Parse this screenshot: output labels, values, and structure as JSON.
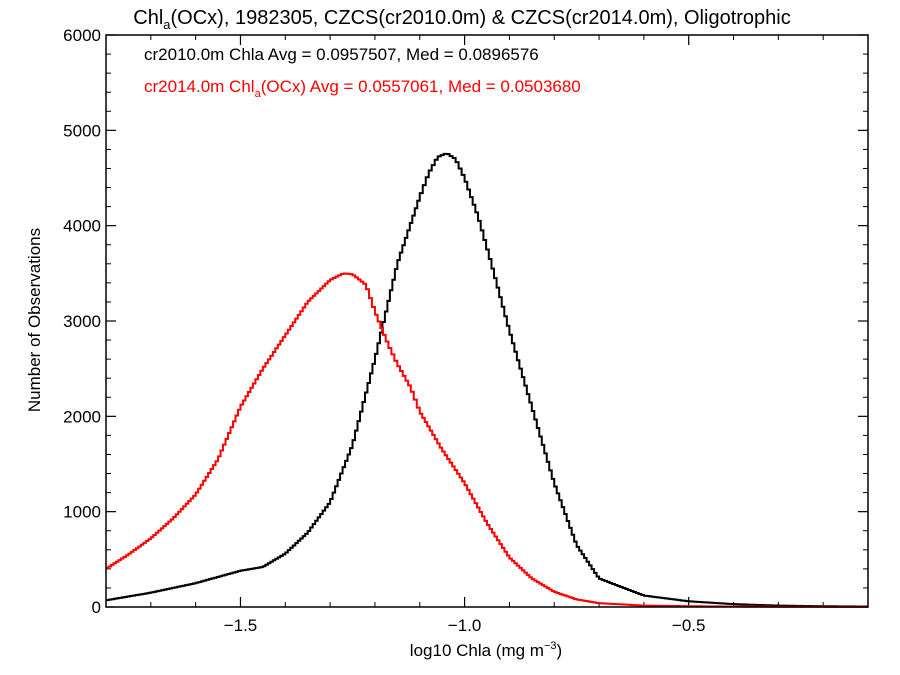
{
  "chart_data": {
    "type": "line",
    "step": true,
    "title": {
      "prefix": "Chl",
      "sub": "a",
      "rest": "(OCx), 1982305, CZCS(cr2010.0m) & CZCS(cr2014.0m), Oligotrophic"
    },
    "xlabel": {
      "prefix": "log10 Chla (mg m",
      "sup": "−3",
      "suffix": ")"
    },
    "ylabel": "Number of Observations",
    "xlim": [
      -1.8,
      -0.1
    ],
    "ylim": [
      0,
      6000
    ],
    "xticks": [
      -1.5,
      -1.0,
      -0.5
    ],
    "xtick_labels": [
      "−1.5",
      "−1.0",
      "−0.5"
    ],
    "yticks": [
      0,
      1000,
      2000,
      3000,
      4000,
      5000,
      6000
    ],
    "ytick_labels": [
      "0",
      "1000",
      "2000",
      "3000",
      "4000",
      "5000",
      "6000"
    ],
    "grid": false,
    "legend": [
      {
        "text": "cr2010.0m Chla Avg = 0.0957507, Med = 0.0896576",
        "color": "#000000"
      },
      {
        "prefix": "cr2014.0m Chl",
        "sub": "a",
        "rest": "(OCx) Avg = 0.0557061, Med = 0.0503680",
        "color": "#ff0000"
      }
    ],
    "series": [
      {
        "color": "#000000",
        "x": [
          -1.8,
          -1.7,
          -1.6,
          -1.5,
          -1.45,
          -1.4,
          -1.35,
          -1.3,
          -1.25,
          -1.2,
          -1.15,
          -1.1,
          -1.08,
          -1.06,
          -1.04,
          -1.02,
          -1.0,
          -0.97,
          -0.94,
          -0.9,
          -0.85,
          -0.8,
          -0.75,
          -0.7,
          -0.6,
          -0.5,
          -0.4,
          -0.3,
          -0.2,
          -0.1
        ],
        "y": [
          70,
          150,
          250,
          380,
          420,
          560,
          780,
          1100,
          1700,
          2600,
          3600,
          4300,
          4550,
          4720,
          4760,
          4700,
          4500,
          4100,
          3600,
          2900,
          2100,
          1300,
          650,
          300,
          120,
          60,
          30,
          15,
          8,
          5
        ]
      },
      {
        "color": "#ff0000",
        "x": [
          -1.8,
          -1.75,
          -1.7,
          -1.65,
          -1.6,
          -1.55,
          -1.5,
          -1.45,
          -1.4,
          -1.35,
          -1.3,
          -1.27,
          -1.25,
          -1.22,
          -1.2,
          -1.17,
          -1.15,
          -1.12,
          -1.1,
          -1.05,
          -1.0,
          -0.95,
          -0.9,
          -0.85,
          -0.8,
          -0.75,
          -0.7,
          -0.6,
          -0.5,
          -0.4,
          -0.3,
          -0.2,
          -0.1
        ],
        "y": [
          400,
          550,
          720,
          930,
          1180,
          1550,
          2100,
          2500,
          2850,
          3200,
          3430,
          3500,
          3490,
          3380,
          3100,
          2750,
          2550,
          2300,
          2050,
          1650,
          1300,
          880,
          520,
          300,
          160,
          80,
          40,
          15,
          8,
          5,
          3,
          2,
          1
        ]
      }
    ]
  }
}
